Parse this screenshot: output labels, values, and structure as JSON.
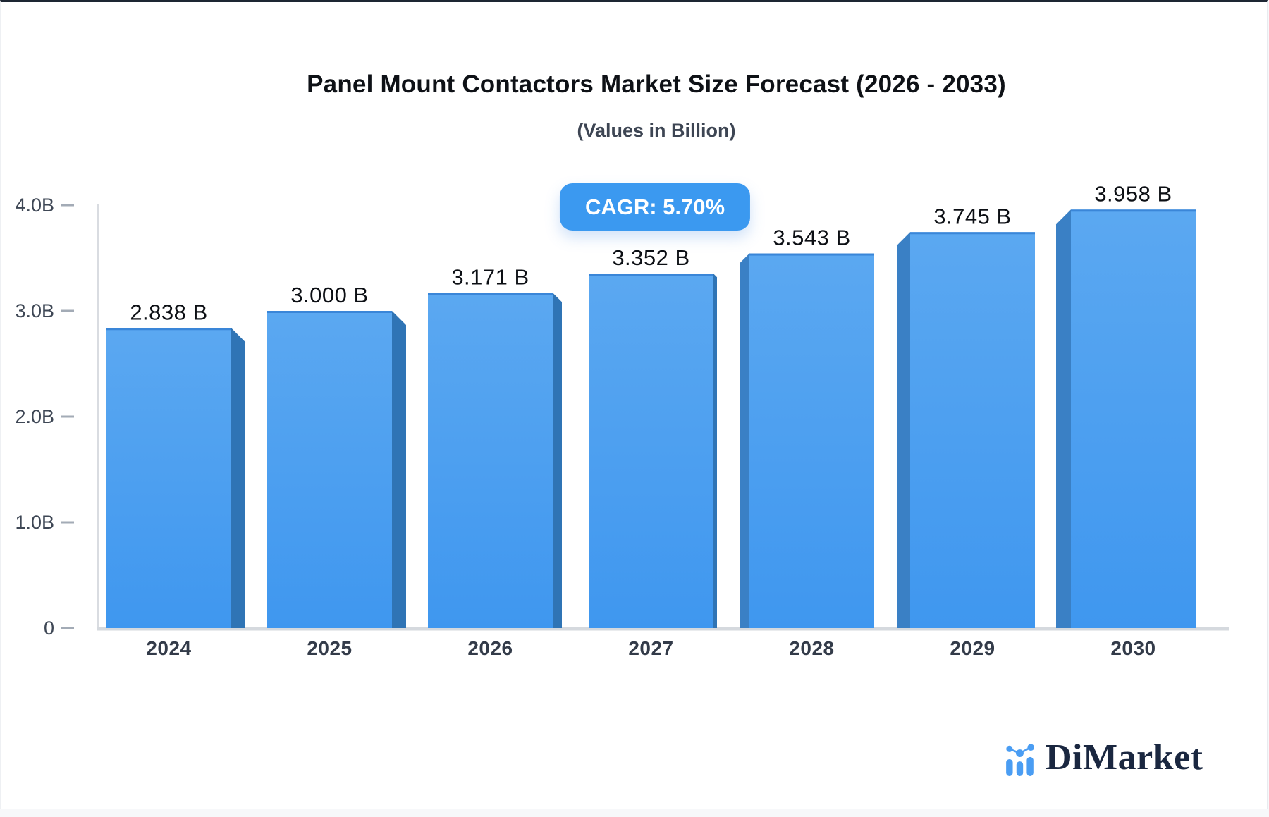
{
  "page": {
    "background": "#f7f8fa",
    "card_background": "#ffffff",
    "top_border_color": "#1d2633"
  },
  "header": {
    "title": "Panel Mount Contactors Market Size Forecast (2026 - 2033)",
    "subtitle": "(Values in Billion)"
  },
  "cagr_badge": {
    "label": "CAGR: 5.70%",
    "background": "#3b99f0",
    "text_color": "#ffffff"
  },
  "chart_data": {
    "type": "bar",
    "title": "Panel Mount Contactors Market Size Forecast (2026 - 2033)",
    "subtitle": "(Values in Billion)",
    "categories": [
      "2024",
      "2025",
      "2026",
      "2027",
      "2028",
      "2029",
      "2030"
    ],
    "values": [
      2.838,
      3.0,
      3.171,
      3.352,
      3.543,
      3.745,
      3.958
    ],
    "value_labels": [
      "2.838 B",
      "3.000 B",
      "3.171 B",
      "3.352 B",
      "3.543 B",
      "3.745 B",
      "3.958 B"
    ],
    "cagr_annotation": "CAGR: 5.70%",
    "xlabel": "",
    "ylabel": "",
    "ylim": [
      0,
      4
    ],
    "ytick_values": [
      0,
      1,
      2,
      3,
      4
    ],
    "ytick_labels": [
      "0",
      "1.0B",
      "2.0B",
      "3.0B",
      "4.0B"
    ],
    "grid": "off",
    "legend": "none",
    "bar_face_color_top": "#5ba8f1",
    "bar_face_color_bottom": "#3f97ef",
    "bar_side_color_right": "#2f74b5",
    "bar_side_color_left": "#3a80c5",
    "bar_top_edge_color": "#3a86d8",
    "axis_line_color": "#d9dce1",
    "tick_text_color": "#3e4755",
    "category_text_color": "#333b49",
    "value_text_color": "#0c0f14"
  },
  "branding": {
    "name": "DiMarket",
    "icon_color": "#4a9df3",
    "text_color": "#1a2740"
  }
}
